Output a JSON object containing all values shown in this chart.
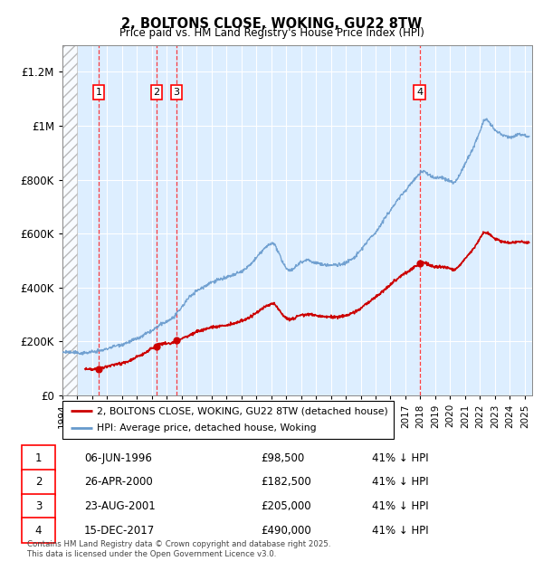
{
  "title": "2, BOLTONS CLOSE, WOKING, GU22 8TW",
  "subtitle": "Price paid vs. HM Land Registry's House Price Index (HPI)",
  "ylim": [
    0,
    1300000
  ],
  "xlim_left": 1994.0,
  "xlim_right": 2025.5,
  "yticks": [
    0,
    200000,
    400000,
    600000,
    800000,
    1000000,
    1200000
  ],
  "ytick_labels": [
    "£0",
    "£200K",
    "£400K",
    "£600K",
    "£800K",
    "£1M",
    "£1.2M"
  ],
  "xticks": [
    1994,
    1995,
    1996,
    1997,
    1998,
    1999,
    2000,
    2001,
    2002,
    2003,
    2004,
    2005,
    2006,
    2007,
    2008,
    2009,
    2010,
    2011,
    2012,
    2013,
    2014,
    2015,
    2016,
    2017,
    2018,
    2019,
    2020,
    2021,
    2022,
    2023,
    2024,
    2025
  ],
  "hatch_end": 1995.0,
  "sale_dates": [
    1996.43,
    2000.32,
    2001.64,
    2017.96
  ],
  "sale_prices": [
    98500,
    182500,
    205000,
    490000
  ],
  "sale_labels": [
    "1",
    "2",
    "3",
    "4"
  ],
  "legend_red": "2, BOLTONS CLOSE, WOKING, GU22 8TW (detached house)",
  "legend_blue": "HPI: Average price, detached house, Woking",
  "table_rows": [
    [
      "1",
      "06-JUN-1996",
      "£98,500",
      "41% ↓ HPI"
    ],
    [
      "2",
      "26-APR-2000",
      "£182,500",
      "41% ↓ HPI"
    ],
    [
      "3",
      "23-AUG-2001",
      "£205,000",
      "41% ↓ HPI"
    ],
    [
      "4",
      "15-DEC-2017",
      "£490,000",
      "41% ↓ HPI"
    ]
  ],
  "footer": "Contains HM Land Registry data © Crown copyright and database right 2025.\nThis data is licensed under the Open Government Licence v3.0.",
  "bg_color": "#ddeeff",
  "red_color": "#cc0000",
  "blue_color": "#6699cc",
  "grid_color": "#ffffff",
  "hpi_anchors": [
    [
      1994.0,
      162000
    ],
    [
      1994.5,
      163000
    ],
    [
      1995.0,
      163000
    ],
    [
      1995.5,
      165000
    ],
    [
      1996.0,
      167000
    ],
    [
      1996.5,
      172000
    ],
    [
      1997.0,
      180000
    ],
    [
      1997.5,
      190000
    ],
    [
      1998.0,
      197000
    ],
    [
      1998.5,
      205000
    ],
    [
      1999.0,
      215000
    ],
    [
      1999.5,
      228000
    ],
    [
      2000.0,
      242000
    ],
    [
      2000.5,
      262000
    ],
    [
      2001.0,
      278000
    ],
    [
      2001.5,
      295000
    ],
    [
      2002.0,
      330000
    ],
    [
      2002.5,
      365000
    ],
    [
      2003.0,
      390000
    ],
    [
      2003.5,
      405000
    ],
    [
      2004.0,
      420000
    ],
    [
      2004.5,
      430000
    ],
    [
      2005.0,
      435000
    ],
    [
      2005.5,
      445000
    ],
    [
      2006.0,
      460000
    ],
    [
      2006.5,
      480000
    ],
    [
      2007.0,
      510000
    ],
    [
      2007.5,
      545000
    ],
    [
      2008.0,
      570000
    ],
    [
      2008.25,
      565000
    ],
    [
      2008.5,
      535000
    ],
    [
      2008.75,
      500000
    ],
    [
      2009.0,
      480000
    ],
    [
      2009.25,
      470000
    ],
    [
      2009.5,
      475000
    ],
    [
      2009.75,
      490000
    ],
    [
      2010.0,
      500000
    ],
    [
      2010.5,
      505000
    ],
    [
      2011.0,
      495000
    ],
    [
      2011.5,
      490000
    ],
    [
      2012.0,
      488000
    ],
    [
      2012.5,
      490000
    ],
    [
      2013.0,
      498000
    ],
    [
      2013.5,
      515000
    ],
    [
      2014.0,
      545000
    ],
    [
      2014.5,
      580000
    ],
    [
      2015.0,
      610000
    ],
    [
      2015.5,
      650000
    ],
    [
      2016.0,
      690000
    ],
    [
      2016.5,
      730000
    ],
    [
      2017.0,
      760000
    ],
    [
      2017.5,
      790000
    ],
    [
      2018.0,
      820000
    ],
    [
      2018.25,
      825000
    ],
    [
      2018.5,
      815000
    ],
    [
      2018.75,
      808000
    ],
    [
      2019.0,
      800000
    ],
    [
      2019.5,
      800000
    ],
    [
      2020.0,
      790000
    ],
    [
      2020.25,
      780000
    ],
    [
      2020.5,
      795000
    ],
    [
      2020.75,
      820000
    ],
    [
      2021.0,
      850000
    ],
    [
      2021.5,
      900000
    ],
    [
      2022.0,
      970000
    ],
    [
      2022.25,
      1010000
    ],
    [
      2022.5,
      1010000
    ],
    [
      2022.75,
      990000
    ],
    [
      2023.0,
      970000
    ],
    [
      2023.25,
      960000
    ],
    [
      2023.5,
      950000
    ],
    [
      2023.75,
      945000
    ],
    [
      2024.0,
      940000
    ],
    [
      2024.5,
      950000
    ],
    [
      2025.0,
      950000
    ],
    [
      2025.3,
      945000
    ]
  ],
  "red_factor": 0.59
}
